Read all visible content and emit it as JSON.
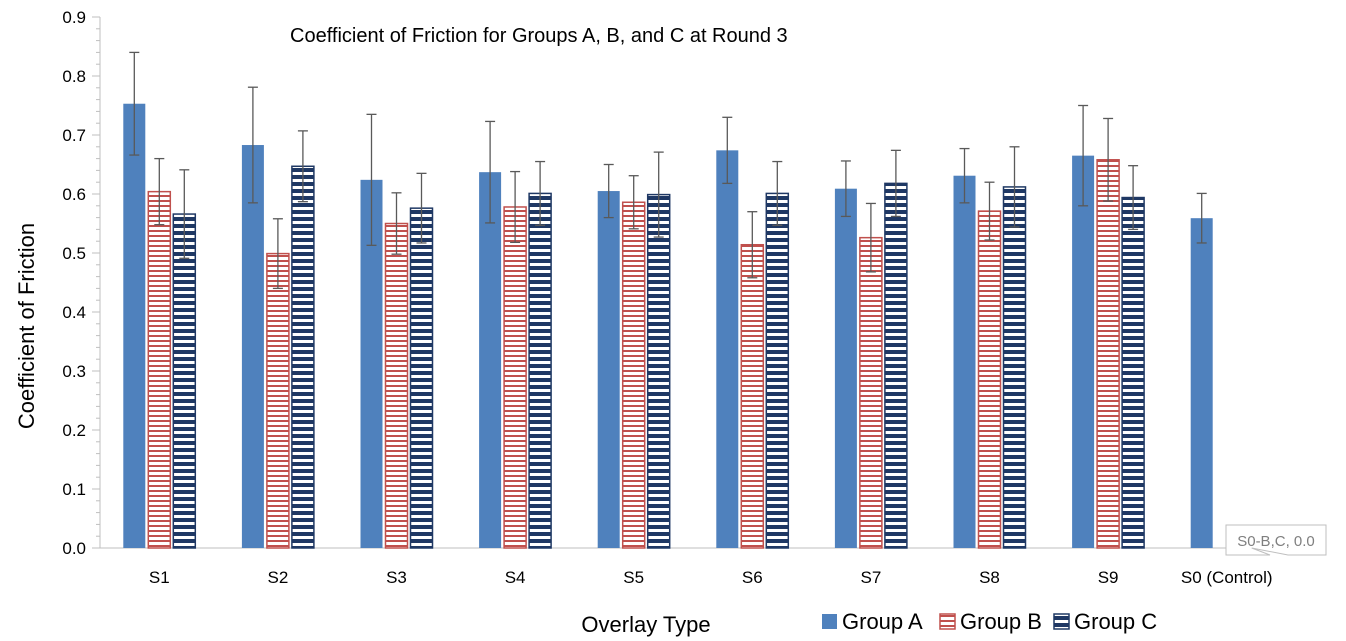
{
  "chart_data": {
    "type": "bar",
    "title": "Coefficient of Friction for Groups A, B, and C at Round 3",
    "xlabel": "Overlay Type",
    "ylabel": "Coefficient of Friction",
    "ylim": [
      0,
      0.9
    ],
    "yticks": [
      "0.0",
      "0.1",
      "0.2",
      "0.3",
      "0.4",
      "0.5",
      "0.6",
      "0.7",
      "0.8",
      "0.9"
    ],
    "grid": false,
    "legend_position": "bottom-right",
    "categories": [
      "S1",
      "S2",
      "S3",
      "S4",
      "S5",
      "S6",
      "S7",
      "S8",
      "S9",
      "S0 (Control)"
    ],
    "series": [
      {
        "name": "Group A",
        "pattern": "solid",
        "color": "#4F81BD",
        "values": [
          0.753,
          0.683,
          0.624,
          0.637,
          0.605,
          0.674,
          0.609,
          0.631,
          0.665,
          0.559
        ],
        "error": [
          0.087,
          0.098,
          0.111,
          0.086,
          0.045,
          0.056,
          0.047,
          0.046,
          0.085,
          0.042
        ]
      },
      {
        "name": "Group B",
        "pattern": "horizontal-stripes",
        "color": "#C0504D",
        "values": [
          0.604,
          0.499,
          0.55,
          0.578,
          0.586,
          0.514,
          0.526,
          0.571,
          0.658,
          0.0
        ],
        "error": [
          0.056,
          0.059,
          0.052,
          0.06,
          0.045,
          0.056,
          0.058,
          0.049,
          0.07,
          0.0
        ]
      },
      {
        "name": "Group C",
        "pattern": "horizontal-stripes",
        "color": "#1F3864",
        "values": [
          0.566,
          0.647,
          0.576,
          0.601,
          0.599,
          0.601,
          0.618,
          0.612,
          0.594,
          0.0
        ],
        "error": [
          0.075,
          0.06,
          0.059,
          0.054,
          0.072,
          0.054,
          0.056,
          0.068,
          0.054,
          0.0
        ]
      }
    ],
    "annotations": [
      {
        "text": "S0-B,C, 0.0",
        "category": "S0 (Control)",
        "series": [
          "Group B",
          "Group C"
        ],
        "value": 0.0
      }
    ]
  }
}
